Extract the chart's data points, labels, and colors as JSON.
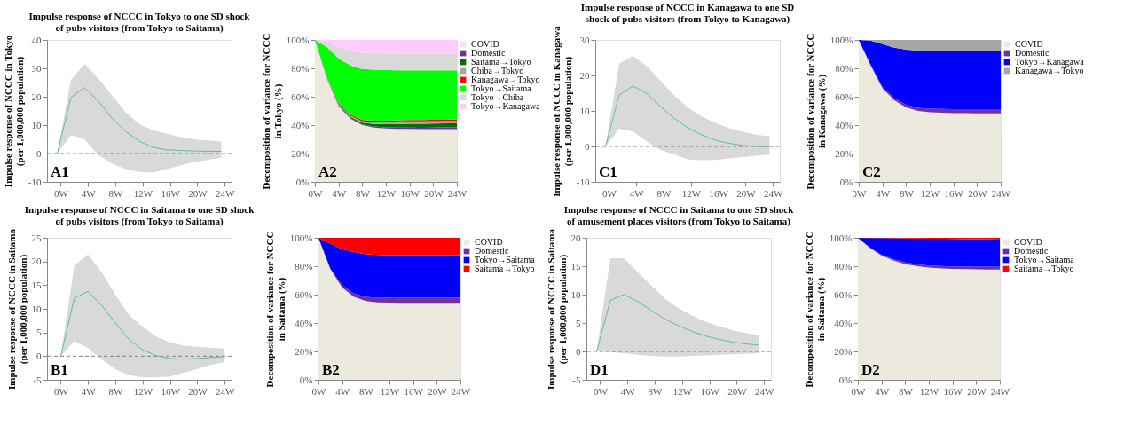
{
  "chart_data": [
    {
      "type": "line",
      "title": "Impulse response of NCCC in Tokyo to one SD shock\nof pubs visitors (from Tokyo to Saitama)",
      "ylabel": "Impulse response of NCCC in Tokyo\n(per 1,000,000 population)",
      "annotations": [
        "A1"
      ],
      "grid": false,
      "x": [
        -0.5,
        1.5,
        3.5,
        5.5,
        7.5,
        9.5,
        11.5,
        13.5,
        15.5,
        17.5,
        19.5,
        21.5,
        23.5
      ],
      "series": [
        {
          "color": "#5cbf9a",
          "values": [
            0,
            19.8,
            23.2,
            18.5,
            12.5,
            7.8,
            4.3,
            2.2,
            1.3,
            1.1,
            0.9,
            0.8,
            0.8
          ],
          "lower": [
            0,
            6.5,
            5,
            -0.5,
            -3.5,
            -5.5,
            -6.5,
            -6.7,
            -5.5,
            -4.2,
            -3,
            -2.3,
            -1.5
          ],
          "upper": [
            0,
            26,
            31.5,
            26.5,
            20.5,
            14.5,
            10.3,
            8.2,
            7,
            5.8,
            5,
            4.6,
            4.2
          ]
        }
      ],
      "xlim": [
        -2,
        25
      ],
      "xticks": [
        {
          "value": 0,
          "label": "0W"
        },
        {
          "value": 4,
          "label": "4W"
        },
        {
          "value": 8,
          "label": "8W"
        },
        {
          "value": 12,
          "label": "12W"
        },
        {
          "value": 16,
          "label": "16W"
        },
        {
          "value": 20,
          "label": "20W"
        },
        {
          "value": 24,
          "label": "24W"
        }
      ],
      "ylim": [
        -10,
        40
      ],
      "yticks": [
        -10,
        0,
        10,
        20,
        30,
        40
      ],
      "ref_lines": [
        {
          "axis": "y",
          "value": 0,
          "line_style": "dashed",
          "color": "#808080"
        }
      ]
    },
    {
      "type": "area",
      "stacked": true,
      "ylabel": "Decomposition of variance for NCCC\nin Tokyo (%)",
      "annotations": [
        "A2"
      ],
      "grid": false,
      "legend": "right",
      "x": [
        0,
        2,
        4,
        6,
        8,
        10,
        12,
        14,
        16,
        18,
        20,
        22,
        24
      ],
      "series": [
        {
          "name": "COVID",
          "color": "#ece9df",
          "values": [
            100,
            73,
            53.5,
            44.5,
            40,
            38.3,
            37.6,
            37.4,
            37.3,
            37.2,
            37.2,
            37.2,
            37.2
          ]
        },
        {
          "name": "Domestic",
          "color": "#7030a0",
          "values": [
            0,
            0.3,
            0.5,
            0.5,
            0.5,
            0.7,
            0.8,
            0.9,
            1,
            1,
            1.1,
            1.2,
            1.2
          ]
        },
        {
          "name": "Saitama→Tokyo",
          "color": "#007000",
          "values": [
            0,
            0.2,
            0.5,
            0.8,
            1.2,
            1.8,
            2.2,
            2.5,
            2.6,
            2.7,
            2.8,
            2.8,
            2.9
          ]
        },
        {
          "name": "Chiba→Tokyo",
          "color": "#a6a6a6",
          "values": [
            0,
            0.2,
            0.5,
            0.7,
            1,
            1.4,
            1.6,
            1.8,
            1.8,
            1.8,
            1.7,
            1.7,
            1.7
          ]
        },
        {
          "name": "Kanagawa→Tokyo",
          "color": "#ff0000",
          "values": [
            0,
            0.3,
            0.6,
            0.8,
            0.9,
            0.9,
            0.9,
            0.9,
            0.9,
            0.9,
            0.9,
            0.9,
            1
          ]
        },
        {
          "name": "Tokyo→Saitama",
          "color": "#00ff00",
          "values": [
            0,
            21,
            31.4,
            34.7,
            35.9,
            35.9,
            35.6,
            35.1,
            35,
            35,
            34.9,
            34.8,
            34.6
          ]
        },
        {
          "name": "Tokyo→Chiba",
          "color": "#d9d9d9",
          "values": [
            0,
            3.5,
            8,
            10,
            11.3,
            11.5,
            11.7,
            11.7,
            11.7,
            11.7,
            11.7,
            11.7,
            11.7
          ]
        },
        {
          "name": "Tokyo→Kanagawa",
          "color": "#ffccff",
          "values": [
            0,
            1.5,
            5,
            8,
            9.2,
            9.5,
            9.6,
            9.7,
            9.7,
            9.7,
            9.7,
            9.7,
            9.7
          ]
        }
      ],
      "xlim": [
        0,
        24
      ],
      "xticks": [
        {
          "value": 0,
          "label": "0W"
        },
        {
          "value": 4,
          "label": "4W"
        },
        {
          "value": 8,
          "label": "8W"
        },
        {
          "value": 12,
          "label": "12W"
        },
        {
          "value": 16,
          "label": "16W"
        },
        {
          "value": 20,
          "label": "20W"
        },
        {
          "value": 24,
          "label": "24W"
        }
      ],
      "ylim": [
        0,
        100
      ],
      "yticks": [
        {
          "value": 0,
          "label": "0%"
        },
        {
          "value": 20,
          "label": "20%"
        },
        {
          "value": 40,
          "label": "40%"
        },
        {
          "value": 60,
          "label": "60%"
        },
        {
          "value": 80,
          "label": "80%"
        },
        {
          "value": 100,
          "label": "100%"
        }
      ]
    },
    {
      "type": "line",
      "title": "Impulse response of NCCC in Kanagawa to one SD\nshock of pubs visitors (from Tokyo to Kanagawa)",
      "ylabel": "Impulse response of NCCC in Kanagawa\n(per 1,000,000 population)",
      "annotations": [
        "C1"
      ],
      "grid": false,
      "x": [
        -0.5,
        1.5,
        3.5,
        5.5,
        7.5,
        9.5,
        11.5,
        13.5,
        15.5,
        17.5,
        19.5,
        21.5,
        23.5
      ],
      "series": [
        {
          "color": "#5cbf9a",
          "values": [
            0,
            14.5,
            17,
            15,
            11.3,
            8,
            5.3,
            3.3,
            1.8,
            0.9,
            0.3,
            0,
            -0.1
          ],
          "lower": [
            0,
            5,
            4.2,
            1.5,
            -1,
            -2.2,
            -3.6,
            -3.9,
            -3.8,
            -3.4,
            -3,
            -2.6,
            -2.3
          ],
          "upper": [
            0,
            23.3,
            25.5,
            22.7,
            18.5,
            14.5,
            11,
            8.5,
            6.7,
            5.2,
            4.2,
            3.3,
            2.8
          ]
        }
      ],
      "xlim": [
        -2,
        25
      ],
      "xticks": [
        {
          "value": 0,
          "label": "0W"
        },
        {
          "value": 4,
          "label": "4W"
        },
        {
          "value": 8,
          "label": "8W"
        },
        {
          "value": 12,
          "label": "12W"
        },
        {
          "value": 16,
          "label": "16W"
        },
        {
          "value": 20,
          "label": "20W"
        },
        {
          "value": 24,
          "label": "24W"
        }
      ],
      "ylim": [
        -10,
        30
      ],
      "yticks": [
        -10,
        0,
        10,
        20,
        30
      ],
      "ref_lines": [
        {
          "axis": "y",
          "value": 0,
          "line_style": "dashed",
          "color": "#808080"
        }
      ]
    },
    {
      "type": "area",
      "stacked": true,
      "ylabel": "Decomposition of variance for NCCC\nin Kanagawa (%)",
      "annotations": [
        "C2"
      ],
      "grid": false,
      "legend": "right",
      "x": [
        0,
        2,
        4,
        6,
        8,
        10,
        12,
        14,
        16,
        18,
        20,
        22,
        24
      ],
      "series": [
        {
          "name": "COVID",
          "color": "#ece9df",
          "values": [
            100,
            82,
            66,
            57.5,
            52.5,
            50,
            49,
            48.7,
            48.5,
            48.4,
            48.3,
            48.3,
            48.3
          ]
        },
        {
          "name": "Domestic",
          "color": "#7030a0",
          "values": [
            0,
            0.5,
            1,
            1.5,
            1.8,
            2.2,
            2.5,
            2.7,
            2.8,
            2.9,
            3,
            3,
            3
          ]
        },
        {
          "name": "Tokyo→Kanagawa",
          "color": "#0000ff",
          "values": [
            0,
            17,
            30,
            35.5,
            38.9,
            40.3,
            40.7,
            40.6,
            40.7,
            40.7,
            40.7,
            40.7,
            40.7
          ]
        },
        {
          "name": "Kanagawa→Tokyo",
          "color": "#a6a6a6",
          "values": [
            0,
            0.5,
            3,
            5.5,
            6.8,
            7.5,
            7.8,
            8,
            8,
            8,
            8,
            8,
            8
          ]
        }
      ],
      "xlim": [
        0,
        24
      ],
      "xticks": [
        {
          "value": 0,
          "label": "0W"
        },
        {
          "value": 4,
          "label": "4W"
        },
        {
          "value": 8,
          "label": "8W"
        },
        {
          "value": 12,
          "label": "12W"
        },
        {
          "value": 16,
          "label": "16W"
        },
        {
          "value": 20,
          "label": "20W"
        },
        {
          "value": 24,
          "label": "24W"
        }
      ],
      "ylim": [
        0,
        100
      ],
      "yticks": [
        {
          "value": 0,
          "label": "0%"
        },
        {
          "value": 20,
          "label": "20%"
        },
        {
          "value": 40,
          "label": "40%"
        },
        {
          "value": 60,
          "label": "60%"
        },
        {
          "value": 80,
          "label": "80%"
        },
        {
          "value": 100,
          "label": "100%"
        }
      ]
    },
    {
      "type": "line",
      "title": "Impulse response of NCCC in Saitama to one SD shock\nof pubs visitors (from Tokyo to Saitama)",
      "ylabel": "Impulse response of NCCC in Saitama\n(per 1,000,000 population)",
      "annotations": [
        "B1"
      ],
      "grid": false,
      "x": [
        0,
        2,
        4,
        6,
        8,
        10,
        12,
        14,
        16,
        18,
        20,
        22,
        24
      ],
      "series": [
        {
          "color": "#5cbf9a",
          "values": [
            0,
            12.3,
            13.7,
            10.7,
            7,
            3.5,
            1.3,
            0.1,
            -0.5,
            -0.6,
            -0.5,
            -0.3,
            -0.1
          ],
          "lower": [
            0,
            3.2,
            1.7,
            -0.7,
            -2.8,
            -4,
            -4.5,
            -4.5,
            -4.3,
            -3.5,
            -2.7,
            -1.8,
            -1.3
          ],
          "upper": [
            0,
            19.2,
            21.5,
            17.7,
            13,
            8.7,
            6.2,
            4.1,
            2.9,
            2.2,
            2,
            1.8,
            1.6
          ]
        }
      ],
      "xlim": [
        -2,
        25
      ],
      "xticks": [
        {
          "value": 0,
          "label": "0W"
        },
        {
          "value": 4,
          "label": "4W"
        },
        {
          "value": 8,
          "label": "8W"
        },
        {
          "value": 12,
          "label": "12W"
        },
        {
          "value": 16,
          "label": "16W"
        },
        {
          "value": 20,
          "label": "20W"
        },
        {
          "value": 24,
          "label": "24W"
        }
      ],
      "ylim": [
        -5,
        25
      ],
      "yticks": [
        -5,
        0,
        5,
        10,
        15,
        20,
        25
      ],
      "ref_lines": [
        {
          "axis": "y",
          "value": 0,
          "line_style": "dashed",
          "color": "#808080"
        }
      ]
    },
    {
      "type": "area",
      "stacked": true,
      "ylabel": "Decomposition of variance for NCCC\nin Saitama (%)",
      "annotations": [
        "B2"
      ],
      "grid": false,
      "legend": "right",
      "x": [
        0,
        2,
        4,
        6,
        8,
        10,
        12,
        14,
        16,
        18,
        20,
        22,
        24
      ],
      "series": [
        {
          "name": "COVID",
          "color": "#ece9df",
          "values": [
            100,
            78,
            65,
            58.5,
            55.5,
            54.5,
            54.3,
            54.2,
            54.2,
            54.2,
            54.2,
            54.2,
            54.2
          ]
        },
        {
          "name": "Domestic",
          "color": "#7030a0",
          "values": [
            0,
            0.5,
            1.5,
            2.3,
            3,
            3.3,
            3.5,
            3.6,
            3.7,
            3.8,
            3.8,
            3.8,
            3.8
          ]
        },
        {
          "name": "Tokyo→Saitama",
          "color": "#0000ff",
          "values": [
            0,
            17.5,
            25.5,
            29.2,
            30,
            30.2,
            29.9,
            29.8,
            29.7,
            29.6,
            29.6,
            29.6,
            29.6
          ]
        },
        {
          "name": "Saitama→Tokyo",
          "color": "#ff0000",
          "values": [
            0,
            4,
            8,
            10,
            11.5,
            12,
            12.3,
            12.4,
            12.4,
            12.4,
            12.4,
            12.4,
            12.4
          ]
        }
      ],
      "xlim": [
        0,
        24
      ],
      "xticks": [
        {
          "value": 0,
          "label": "0W"
        },
        {
          "value": 4,
          "label": "4W"
        },
        {
          "value": 8,
          "label": "8W"
        },
        {
          "value": 12,
          "label": "12W"
        },
        {
          "value": 16,
          "label": "16W"
        },
        {
          "value": 20,
          "label": "20W"
        },
        {
          "value": 24,
          "label": "24W"
        }
      ],
      "ylim": [
        0,
        100
      ],
      "yticks": [
        {
          "value": 0,
          "label": "0%"
        },
        {
          "value": 20,
          "label": "20%"
        },
        {
          "value": 40,
          "label": "40%"
        },
        {
          "value": 60,
          "label": "60%"
        },
        {
          "value": 80,
          "label": "80%"
        },
        {
          "value": 100,
          "label": "100%"
        }
      ]
    },
    {
      "type": "line",
      "title": "Impulse response of NCCC in Saitama to one SD shock\nof amusement places visitors (from Tokyo to Saitama)",
      "ylabel": "Impulse response of NCCC in Saitama\n(per 1,000,000 population)",
      "annotations": [
        "D1"
      ],
      "grid": false,
      "x": [
        -0.5,
        1.5,
        3.5,
        5.5,
        7.5,
        9.5,
        11.5,
        13.5,
        15.5,
        17.5,
        19.5,
        21.5,
        23.3
      ],
      "series": [
        {
          "color": "#5cbf9a",
          "values": [
            0,
            9,
            10,
            8.8,
            7.2,
            5.7,
            4.5,
            3.5,
            2.7,
            2.1,
            1.6,
            1.3,
            1.1
          ],
          "lower": [
            0,
            -0.1,
            -0.3,
            -0.6,
            -0.8,
            -0.9,
            -0.9,
            -0.8,
            -0.7,
            -0.6,
            -0.5,
            -0.4,
            -0.3
          ],
          "upper": [
            0,
            16.4,
            16.4,
            14,
            11.6,
            9.3,
            7.6,
            6.3,
            5.2,
            4.4,
            3.7,
            3.2,
            2.9
          ]
        }
      ],
      "xlim": [
        -2,
        25
      ],
      "xticks": [
        {
          "value": 0,
          "label": "0W"
        },
        {
          "value": 4,
          "label": "4W"
        },
        {
          "value": 8,
          "label": "8W"
        },
        {
          "value": 12,
          "label": "12W"
        },
        {
          "value": 16,
          "label": "16W"
        },
        {
          "value": 20,
          "label": "20W"
        },
        {
          "value": 24,
          "label": "24W"
        }
      ],
      "ylim": [
        -5,
        20
      ],
      "yticks": [
        -5,
        0,
        5,
        10,
        15,
        20
      ],
      "ref_lines": [
        {
          "axis": "y",
          "value": 0,
          "line_style": "dashed",
          "color": "#808080"
        }
      ]
    },
    {
      "type": "area",
      "stacked": true,
      "ylabel": "Decomposition of variance for NCCC\nin Saitama (%)",
      "annotations": [
        "D2"
      ],
      "grid": false,
      "legend": "right",
      "x": [
        0,
        2,
        4,
        6,
        8,
        10,
        12,
        14,
        16,
        18,
        20,
        22,
        24
      ],
      "series": [
        {
          "name": "COVID",
          "color": "#ece9df",
          "values": [
            100,
            93,
            87.5,
            84,
            81.5,
            80,
            79,
            78.5,
            78.2,
            78,
            77.8,
            77.7,
            77.6
          ]
        },
        {
          "name": "Domestic",
          "color": "#7030a0",
          "values": [
            0,
            0.3,
            0.7,
            1,
            1.2,
            1.4,
            1.5,
            1.6,
            1.7,
            1.8,
            1.9,
            2,
            2
          ]
        },
        {
          "name": "Tokyo→Saitama",
          "color": "#0000ff",
          "values": [
            0,
            6.6,
            11.6,
            14.7,
            16.9,
            18.1,
            18.9,
            19.2,
            19.3,
            19.3,
            19.3,
            19.2,
            19.2
          ]
        },
        {
          "name": "Saitama→Tokyo",
          "color": "#ff0000",
          "values": [
            0,
            0.1,
            0.2,
            0.3,
            0.4,
            0.5,
            0.6,
            0.7,
            0.8,
            0.9,
            1,
            1.1,
            1.2
          ]
        }
      ],
      "xlim": [
        0,
        24
      ],
      "xticks": [
        {
          "value": 0,
          "label": "0W"
        },
        {
          "value": 4,
          "label": "4W"
        },
        {
          "value": 8,
          "label": "8W"
        },
        {
          "value": 12,
          "label": "12W"
        },
        {
          "value": 16,
          "label": "16W"
        },
        {
          "value": 20,
          "label": "20W"
        },
        {
          "value": 24,
          "label": "24W"
        }
      ],
      "ylim": [
        0,
        100
      ],
      "yticks": [
        {
          "value": 0,
          "label": "0%"
        },
        {
          "value": 20,
          "label": "20%"
        },
        {
          "value": 40,
          "label": "40%"
        },
        {
          "value": 60,
          "label": "60%"
        },
        {
          "value": 80,
          "label": "80%"
        },
        {
          "value": 100,
          "label": "100%"
        }
      ]
    }
  ]
}
